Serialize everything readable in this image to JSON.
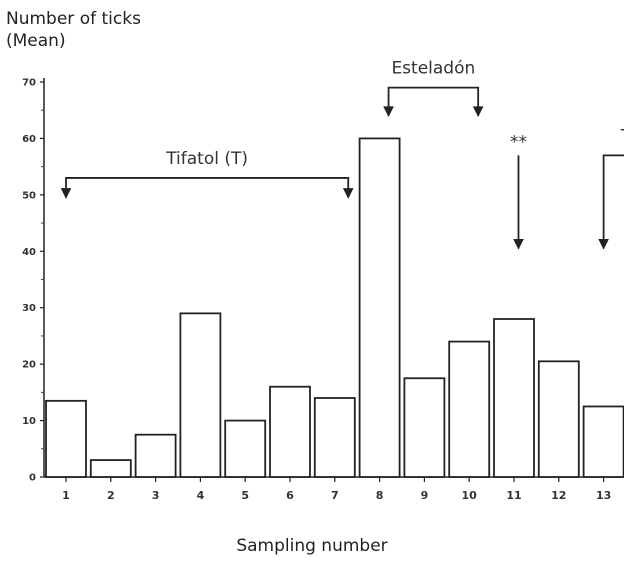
{
  "chart_data": {
    "type": "bar",
    "ylabel_line1": "Number of ticks",
    "ylabel_line2": "(Mean)",
    "xlabel": "Sampling number",
    "categories": [
      "1",
      "2",
      "3",
      "4",
      "5",
      "6",
      "7",
      "8",
      "9",
      "10",
      "11",
      "12",
      "13"
    ],
    "values": [
      13.5,
      3,
      7.5,
      29,
      10,
      16,
      14,
      60,
      17.5,
      24,
      28,
      20.5,
      12.5
    ],
    "ylim": [
      0,
      70
    ],
    "yticks": [
      0,
      10,
      20,
      30,
      40,
      50,
      60,
      70
    ],
    "grid": false,
    "legend": "none",
    "bar_color": "#ffffff",
    "bar_edge_color": "#222222",
    "annotations": [
      {
        "text": "Tifatol (T)",
        "from": 1,
        "to": 7.3,
        "bracket_y": 53,
        "arrow_to": 49.5
      },
      {
        "text": "Esteladón",
        "from": 8.2,
        "to": 10.2,
        "bracket_y": 69,
        "arrow_to": 64
      },
      {
        "text": "**",
        "at": 11.1,
        "top": 57,
        "arrow_to": 40.5
      },
      {
        "text": "T",
        "from": 13,
        "to": 14,
        "bracket_y": 57,
        "arrow_to": 40.5
      }
    ]
  }
}
